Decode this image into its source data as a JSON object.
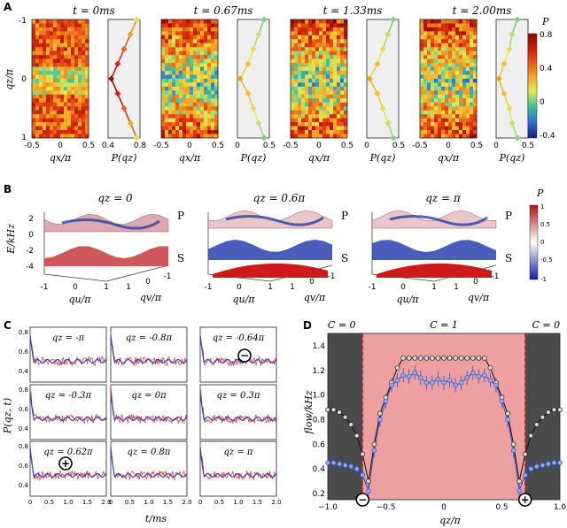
{
  "panels": {
    "a": "A",
    "b": "B",
    "c": "C",
    "d": "D"
  },
  "panelA": {
    "times": [
      "t = 0ms",
      "t = 0.67ms",
      "t = 1.33ms",
      "t = 2.00ms"
    ],
    "ylabel": "qz/π",
    "xlabel_map": "qx/π",
    "xlabel_curve": "P(qz)",
    "yticks": [
      "-1",
      "0",
      "1"
    ],
    "xticks_map": [
      "-0.5",
      "0",
      "0.5"
    ],
    "xticks_curve_0": [
      "0.4",
      "0.8"
    ],
    "xticks_curve": [
      "0",
      "0.5"
    ],
    "colorbar": {
      "title": "P",
      "ticks": [
        "0.8",
        "0.4",
        "0",
        "-0.4"
      ]
    },
    "curve_profiles": [
      [
        0.8,
        0.7,
        0.6,
        0.5,
        0.4,
        0.5,
        0.6,
        0.7,
        0.8
      ],
      [
        0.5,
        0.4,
        0.3,
        0.2,
        0.05,
        0.2,
        0.3,
        0.4,
        0.5
      ],
      [
        0.5,
        0.4,
        0.3,
        0.2,
        0.05,
        0.2,
        0.3,
        0.4,
        0.5
      ],
      [
        0.4,
        0.3,
        0.25,
        0.15,
        0.05,
        0.15,
        0.25,
        0.3,
        0.4
      ]
    ]
  },
  "panelB": {
    "titles": [
      "qz = 0",
      "qz = 0.6π",
      "qz = π"
    ],
    "ylabel": "E/kHz",
    "yticks": [
      "2",
      "0",
      "-2",
      "-4"
    ],
    "band_labels": [
      "P",
      "S"
    ],
    "xticks_u": [
      "-1",
      "0",
      "1"
    ],
    "xticks_v": [
      "1",
      "0",
      "-1"
    ],
    "xlabel_u": "qu/π",
    "xlabel_v": "qv/π",
    "colorbar": {
      "title": "P",
      "ticks": [
        "1",
        "0.5",
        "0",
        "-0.5",
        "-1"
      ]
    }
  },
  "panelC": {
    "titles": [
      "qz = -π",
      "qz = -0.8π",
      "qz = -0.64π",
      "qz = -0.3π",
      "qz = 0π",
      "qz = 0.3π",
      "qz = 0.62π",
      "qz = 0.8π",
      "qz = π"
    ],
    "ylabel": "P(qz, t)",
    "xlabel": "t/ms",
    "yticks": [
      "0.8",
      "0.6",
      "0.4"
    ],
    "xticks": [
      "0",
      "0.5",
      "1.0",
      "1.5",
      "2.0"
    ],
    "minus_symbol": "−",
    "plus_symbol": "+"
  },
  "panelD": {
    "chern": [
      "C = 0",
      "C = 1",
      "C = 0"
    ],
    "ylabel": "flow/kHz",
    "xlabel": "qz/π",
    "yticks": [
      "1.4",
      "1.2",
      "1.0",
      "0.8",
      "0.6",
      "0.4",
      "0.2"
    ],
    "xticks": [
      "−1.0",
      "−0.5",
      "0",
      "0.5",
      "1.0"
    ],
    "minus_symbol": "−",
    "plus_symbol": "+"
  },
  "chart_data": [
    {
      "type": "line",
      "title": "",
      "xlabel": "qz/π",
      "ylabel": "flow/kHz",
      "xlim": [
        -1.0,
        1.0
      ],
      "ylim": [
        0.15,
        1.5
      ],
      "x": [
        -1.0,
        -0.95,
        -0.9,
        -0.85,
        -0.8,
        -0.75,
        -0.7,
        -0.65,
        -0.6,
        -0.55,
        -0.5,
        -0.45,
        -0.4,
        -0.35,
        -0.3,
        -0.25,
        -0.2,
        -0.15,
        -0.1,
        -0.05,
        0,
        0.05,
        0.1,
        0.15,
        0.2,
        0.25,
        0.3,
        0.35,
        0.4,
        0.45,
        0.5,
        0.55,
        0.6,
        0.65,
        0.7,
        0.75,
        0.8,
        0.85,
        0.9,
        0.95,
        1.0
      ],
      "series": [
        {
          "values": [
            0.88,
            0.88,
            0.86,
            0.82,
            0.76,
            0.67,
            0.52,
            0.3,
            0.6,
            0.85,
            0.98,
            1.1,
            1.22,
            1.3,
            1.3,
            1.3,
            1.3,
            1.3,
            1.3,
            1.3,
            1.3,
            1.3,
            1.3,
            1.3,
            1.3,
            1.3,
            1.3,
            1.3,
            1.22,
            1.1,
            0.98,
            0.85,
            0.6,
            0.3,
            0.52,
            0.67,
            0.76,
            0.82,
            0.86,
            0.88,
            0.88
          ]
        },
        {
          "values": [
            0.45,
            0.45,
            0.44,
            0.43,
            0.42,
            0.4,
            0.35,
            0.22,
            0.55,
            0.8,
            0.95,
            1.08,
            1.12,
            1.16,
            1.15,
            1.18,
            1.14,
            1.1,
            1.1,
            1.13,
            1.1,
            1.12,
            1.08,
            1.1,
            1.14,
            1.18,
            1.15,
            1.16,
            1.12,
            1.08,
            0.95,
            0.8,
            0.55,
            0.22,
            0.35,
            0.4,
            0.42,
            0.43,
            0.44,
            0.45,
            0.45
          ]
        }
      ],
      "topological_region": [
        -0.7,
        0.7
      ]
    }
  ]
}
